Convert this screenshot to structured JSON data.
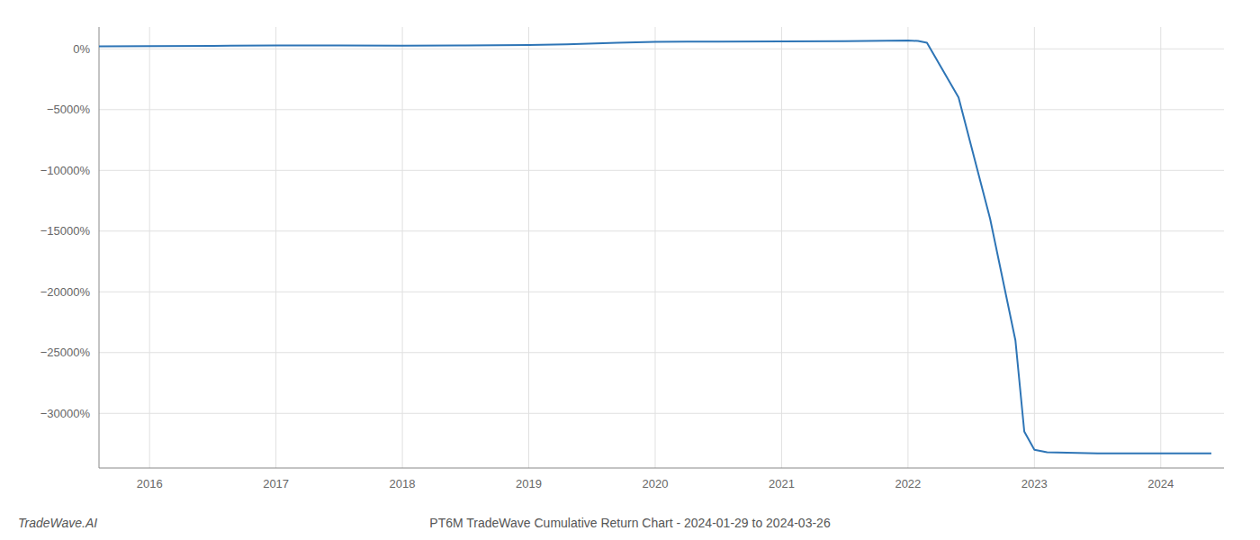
{
  "chart_data": {
    "type": "line",
    "title": "PT6M TradeWave Cumulative Return Chart - 2024-01-29 to 2024-03-26",
    "annotations": [
      "TradeWave.AI"
    ],
    "x": [
      2015.6,
      2016.0,
      2016.5,
      2017.0,
      2017.5,
      2018.0,
      2018.5,
      2019.0,
      2019.3,
      2019.7,
      2020.0,
      2020.5,
      2021.0,
      2021.5,
      2022.0,
      2022.08,
      2022.15,
      2022.4,
      2022.65,
      2022.85,
      2022.92,
      2023.0,
      2023.1,
      2023.5,
      2024.0,
      2024.4
    ],
    "values": [
      200,
      230,
      250,
      290,
      280,
      270,
      280,
      310,
      380,
      500,
      580,
      600,
      620,
      640,
      680,
      650,
      500,
      -4000,
      -14000,
      -24000,
      -31500,
      -33000,
      -33200,
      -33300,
      -33300,
      -33300
    ],
    "color": "#2e75b6",
    "xlim": [
      2015.6,
      2024.5
    ],
    "ylim": [
      -34500,
      1800
    ],
    "xticks": [
      2016,
      2017,
      2018,
      2019,
      2020,
      2021,
      2022,
      2023,
      2024
    ],
    "yticks": [
      {
        "value": 0,
        "label": "0%"
      },
      {
        "value": -5000,
        "label": "−5000%"
      },
      {
        "value": -10000,
        "label": "−10000%"
      },
      {
        "value": -15000,
        "label": "−15000%"
      },
      {
        "value": -20000,
        "label": "−20000%"
      },
      {
        "value": -25000,
        "label": "−25000%"
      },
      {
        "value": -30000,
        "label": "−30000%"
      }
    ],
    "grid": true
  }
}
